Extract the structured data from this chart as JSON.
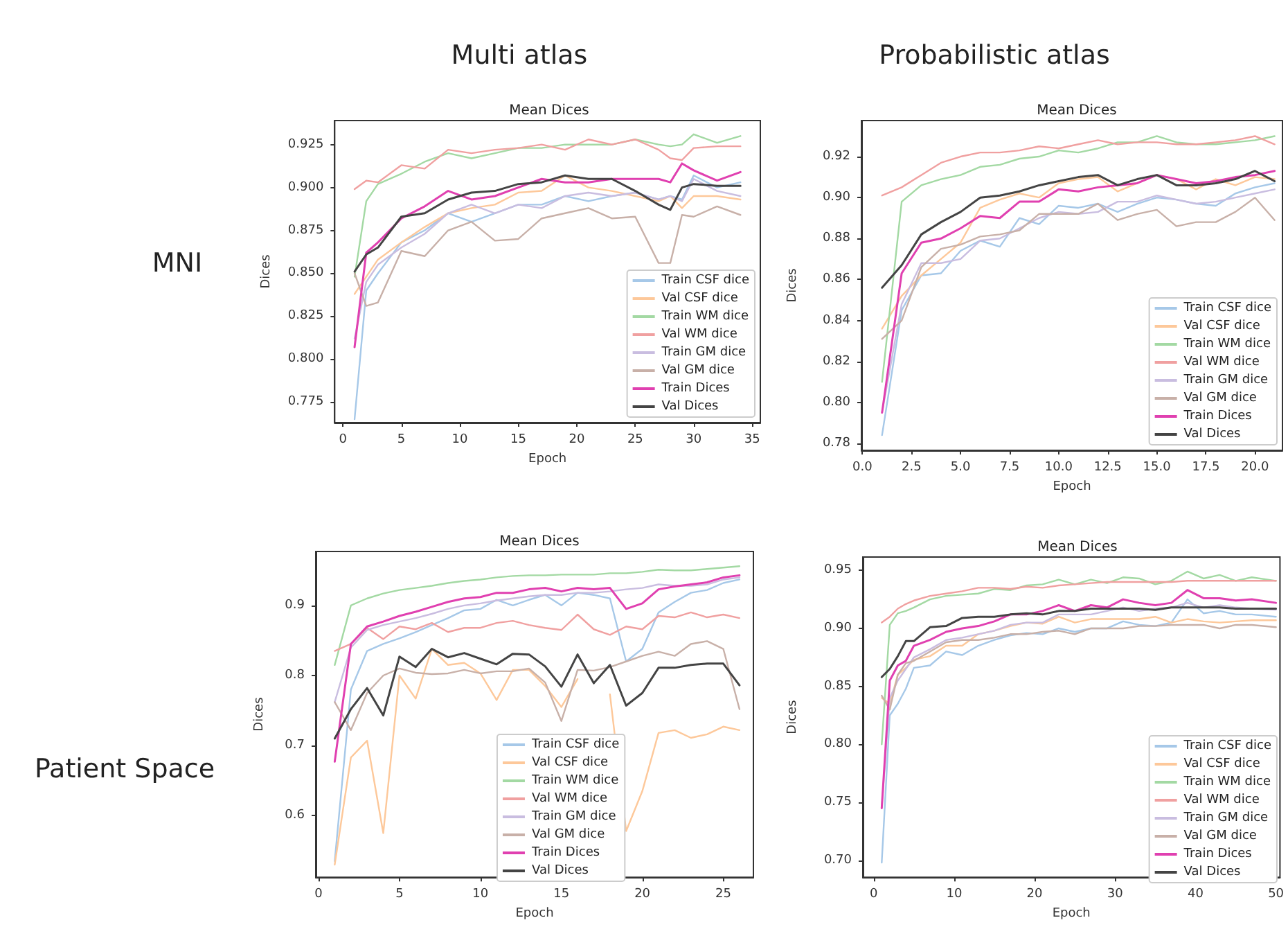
{
  "chart_data": [
    {
      "type": "line",
      "title": "Mean Dices",
      "xlabel": "Epoch",
      "ylabel": "Dices",
      "legend": "bottom right",
      "xlim": [
        -0.7,
        35.7
      ],
      "xticks": [
        0,
        5,
        10,
        15,
        20,
        25,
        30,
        35
      ],
      "ylim": [
        0.763,
        0.939
      ],
      "yticks": [
        {
          "value": 0.775,
          "label": "0.775"
        },
        {
          "value": 0.8,
          "label": "0.800"
        },
        {
          "value": 0.825,
          "label": "0.825"
        },
        {
          "value": 0.85,
          "label": "0.850"
        },
        {
          "value": 0.875,
          "label": "0.875"
        },
        {
          "value": 0.9,
          "label": "0.900"
        },
        {
          "value": 0.925,
          "label": "0.925"
        }
      ],
      "x": [
        1,
        2,
        3,
        5,
        7,
        9,
        11,
        13,
        15,
        17,
        19,
        21,
        23,
        25,
        27,
        28,
        29,
        30,
        32,
        34
      ],
      "series": [
        {
          "name": "Train CSF dice",
          "color": "#a6c8e8",
          "values": [
            0.765,
            0.84,
            0.85,
            0.868,
            0.875,
            0.885,
            0.88,
            0.885,
            0.89,
            0.89,
            0.895,
            0.892,
            0.895,
            0.897,
            0.893,
            0.895,
            0.893,
            0.907,
            0.9,
            0.903
          ]
        },
        {
          "name": "Val CSF dice",
          "color": "#fdc89a",
          "values": [
            0.838,
            0.848,
            0.858,
            0.868,
            0.877,
            0.885,
            0.888,
            0.89,
            0.897,
            0.898,
            0.907,
            0.9,
            0.898,
            0.895,
            0.892,
            0.895,
            0.888,
            0.895,
            0.895,
            0.893
          ]
        },
        {
          "name": "Train WM dice",
          "color": "#a3d9a3",
          "values": [
            0.848,
            0.892,
            0.902,
            0.908,
            0.915,
            0.92,
            0.917,
            0.92,
            0.923,
            0.923,
            0.925,
            0.925,
            0.925,
            0.928,
            0.925,
            0.924,
            0.925,
            0.931,
            0.926,
            0.93
          ]
        },
        {
          "name": "Val WM dice",
          "color": "#f0a0a0",
          "values": [
            0.899,
            0.904,
            0.903,
            0.913,
            0.911,
            0.922,
            0.92,
            0.922,
            0.923,
            0.925,
            0.922,
            0.928,
            0.925,
            0.928,
            0.922,
            0.917,
            0.916,
            0.923,
            0.924,
            0.924
          ]
        },
        {
          "name": "Train GM dice",
          "color": "#c9bde0",
          "values": [
            0.812,
            0.845,
            0.855,
            0.865,
            0.873,
            0.885,
            0.89,
            0.885,
            0.89,
            0.888,
            0.895,
            0.897,
            0.895,
            0.897,
            0.893,
            0.895,
            0.892,
            0.905,
            0.898,
            0.895
          ]
        },
        {
          "name": "Val GM dice",
          "color": "#c8b0a8",
          "values": [
            0.85,
            0.831,
            0.833,
            0.863,
            0.86,
            0.875,
            0.88,
            0.869,
            0.87,
            0.882,
            0.885,
            0.888,
            0.882,
            0.883,
            0.856,
            0.856,
            0.884,
            0.883,
            0.889,
            0.884
          ]
        },
        {
          "name": "Train Dices",
          "color": "#e040b0",
          "values": [
            0.807,
            0.862,
            0.868,
            0.882,
            0.889,
            0.898,
            0.893,
            0.895,
            0.9,
            0.905,
            0.903,
            0.903,
            0.905,
            0.905,
            0.905,
            0.903,
            0.914,
            0.91,
            0.904,
            0.909
          ]
        },
        {
          "name": "Val Dices",
          "color": "#444444",
          "values": [
            0.851,
            0.861,
            0.865,
            0.883,
            0.885,
            0.893,
            0.897,
            0.898,
            0.902,
            0.903,
            0.907,
            0.905,
            0.905,
            0.898,
            0.89,
            0.887,
            0.9,
            0.902,
            0.901,
            0.901
          ]
        }
      ]
    },
    {
      "type": "line",
      "title": "Mean Dices",
      "xlabel": "Epoch",
      "ylabel": "Dices",
      "legend": "bottom right",
      "xlim": [
        -0.05,
        21.4
      ],
      "xticks": [
        {
          "value": 0,
          "label": "0.0"
        },
        {
          "value": 2.5,
          "label": "2.5"
        },
        {
          "value": 5,
          "label": "5.0"
        },
        {
          "value": 7.5,
          "label": "7.5"
        },
        {
          "value": 10,
          "label": "10.0"
        },
        {
          "value": 12.5,
          "label": "12.5"
        },
        {
          "value": 15,
          "label": "15.0"
        },
        {
          "value": 17.5,
          "label": "17.5"
        },
        {
          "value": 20,
          "label": "20.0"
        }
      ],
      "ylim": [
        0.7766,
        0.9376
      ],
      "yticks": [
        0.78,
        {
          "value": 0.8,
          "label": "0.80"
        },
        0.82,
        0.84,
        0.86,
        0.88,
        {
          "value": 0.9,
          "label": "0.90"
        },
        0.92
      ],
      "x": [
        1,
        2,
        3,
        4,
        5,
        6,
        7,
        8,
        9,
        10,
        11,
        12,
        13,
        14,
        15,
        16,
        17,
        18,
        19,
        20,
        21
      ],
      "series": [
        {
          "name": "Train CSF dice",
          "color": "#a6c8e8",
          "values": [
            0.784,
            0.845,
            0.862,
            0.863,
            0.874,
            0.879,
            0.876,
            0.89,
            0.887,
            0.896,
            0.895,
            0.897,
            0.893,
            0.897,
            0.9,
            0.899,
            0.897,
            0.896,
            0.902,
            0.905,
            0.907
          ]
        },
        {
          "name": "Val CSF dice",
          "color": "#fdc89a",
          "values": [
            0.836,
            0.852,
            0.862,
            0.87,
            0.878,
            0.895,
            0.899,
            0.902,
            0.9,
            0.907,
            0.909,
            0.91,
            0.903,
            0.907,
            0.911,
            0.909,
            0.904,
            0.909,
            0.906,
            0.91,
            0.909
          ]
        },
        {
          "name": "Train WM dice",
          "color": "#a3d9a3",
          "values": [
            0.81,
            0.898,
            0.906,
            0.909,
            0.911,
            0.915,
            0.916,
            0.919,
            0.92,
            0.923,
            0.922,
            0.924,
            0.927,
            0.927,
            0.93,
            0.927,
            0.926,
            0.926,
            0.927,
            0.928,
            0.93
          ]
        },
        {
          "name": "Val WM dice",
          "color": "#f0a0a0",
          "values": [
            0.901,
            0.905,
            0.911,
            0.917,
            0.92,
            0.922,
            0.922,
            0.923,
            0.925,
            0.924,
            0.926,
            0.928,
            0.926,
            0.927,
            0.927,
            0.926,
            0.926,
            0.927,
            0.928,
            0.93,
            0.926
          ]
        },
        {
          "name": "Train GM dice",
          "color": "#c9bde0",
          "values": [
            0.795,
            0.848,
            0.868,
            0.868,
            0.87,
            0.879,
            0.88,
            0.885,
            0.89,
            0.893,
            0.892,
            0.893,
            0.898,
            0.898,
            0.901,
            0.899,
            0.897,
            0.898,
            0.9,
            0.902,
            0.904
          ]
        },
        {
          "name": "Val GM dice",
          "color": "#c8b0a8",
          "values": [
            0.831,
            0.84,
            0.866,
            0.875,
            0.877,
            0.881,
            0.882,
            0.884,
            0.892,
            0.892,
            0.892,
            0.897,
            0.889,
            0.892,
            0.894,
            0.886,
            0.888,
            0.888,
            0.893,
            0.9,
            0.889
          ]
        },
        {
          "name": "Train Dices",
          "color": "#e040b0",
          "values": [
            0.795,
            0.863,
            0.878,
            0.88,
            0.885,
            0.891,
            0.89,
            0.898,
            0.898,
            0.904,
            0.903,
            0.905,
            0.906,
            0.907,
            0.911,
            0.909,
            0.907,
            0.908,
            0.91,
            0.911,
            0.913
          ]
        },
        {
          "name": "Val Dices",
          "color": "#444444",
          "values": [
            0.856,
            0.867,
            0.882,
            0.888,
            0.893,
            0.9,
            0.901,
            0.903,
            0.906,
            0.908,
            0.91,
            0.911,
            0.906,
            0.909,
            0.911,
            0.906,
            0.906,
            0.907,
            0.909,
            0.913,
            0.908
          ]
        }
      ]
    },
    {
      "type": "line",
      "title": "Mean Dices",
      "xlabel": "Epoch",
      "ylabel": "Dices",
      "legend": "bottom",
      "xlim": [
        -0.17,
        26.86
      ],
      "xticks": [
        0,
        5,
        10,
        15,
        20,
        25
      ],
      "ylim": [
        0.512,
        0.977
      ],
      "yticks": [
        0.6,
        0.7,
        0.8,
        0.9
      ],
      "x": [
        1,
        2,
        3,
        4,
        5,
        6,
        7,
        8,
        9,
        10,
        11,
        12,
        13,
        14,
        15,
        16,
        17,
        18,
        19,
        20,
        21,
        22,
        23,
        24,
        25,
        26
      ],
      "series": [
        {
          "name": "Train CSF dice",
          "color": "#a6c8e8",
          "values": [
            0.535,
            0.78,
            0.835,
            0.845,
            0.853,
            0.862,
            0.872,
            0.882,
            0.893,
            0.895,
            0.908,
            0.9,
            0.908,
            0.915,
            0.9,
            0.918,
            0.915,
            0.91,
            0.82,
            0.838,
            0.89,
            0.905,
            0.918,
            0.922,
            0.932,
            0.937
          ]
        },
        {
          "name": "Val CSF dice",
          "color": "#fdc89a",
          "values": [
            0.53,
            0.683,
            0.707,
            0.575,
            0.8,
            0.767,
            0.838,
            0.815,
            0.818,
            0.803,
            0.765,
            0.808,
            0.808,
            0.785,
            0.755,
            0.795,
            null,
            0.773,
            0.578,
            0.635,
            0.718,
            0.722,
            0.711,
            0.716,
            0.727,
            0.722
          ]
        },
        {
          "name": "Train WM dice",
          "color": "#a3d9a3",
          "values": [
            0.815,
            0.9,
            0.91,
            0.917,
            0.922,
            0.925,
            0.928,
            0.932,
            0.935,
            0.937,
            0.94,
            0.942,
            0.943,
            0.943,
            0.944,
            0.944,
            0.944,
            0.946,
            0.946,
            0.948,
            0.951,
            0.95,
            0.95,
            0.952,
            0.954,
            0.956
          ]
        },
        {
          "name": "Val WM dice",
          "color": "#f0a0a0",
          "values": [
            0.835,
            0.845,
            0.868,
            0.852,
            0.87,
            0.866,
            0.875,
            0.862,
            0.868,
            0.868,
            0.875,
            0.878,
            0.872,
            0.868,
            0.865,
            0.887,
            0.866,
            0.858,
            0.87,
            0.866,
            0.885,
            0.883,
            0.89,
            0.883,
            0.887,
            0.882
          ]
        },
        {
          "name": "Train GM dice",
          "color": "#c9bde0",
          "values": [
            0.762,
            0.84,
            0.865,
            0.872,
            0.877,
            0.882,
            0.888,
            0.895,
            0.9,
            0.903,
            0.907,
            0.91,
            0.913,
            0.915,
            0.915,
            0.918,
            0.918,
            0.92,
            0.923,
            0.925,
            0.93,
            0.928,
            0.928,
            0.93,
            0.937,
            0.94
          ]
        },
        {
          "name": "Val GM dice",
          "color": "#c8b0a8",
          "values": [
            0.762,
            0.722,
            0.775,
            0.8,
            0.81,
            0.804,
            0.802,
            0.803,
            0.808,
            0.803,
            0.806,
            0.806,
            0.81,
            0.79,
            0.735,
            0.808,
            0.807,
            0.812,
            0.82,
            0.828,
            0.834,
            0.828,
            0.845,
            0.849,
            0.838,
            0.752
          ]
        },
        {
          "name": "Train Dices",
          "color": "#e040b0",
          "values": [
            0.677,
            0.845,
            0.87,
            0.877,
            0.885,
            0.891,
            0.898,
            0.905,
            0.91,
            0.912,
            0.918,
            0.918,
            0.923,
            0.925,
            0.92,
            0.925,
            0.923,
            0.925,
            0.895,
            0.903,
            0.923,
            0.927,
            0.93,
            0.933,
            0.94,
            0.943
          ]
        },
        {
          "name": "Val Dices",
          "color": "#444444",
          "values": [
            0.71,
            0.752,
            0.782,
            0.743,
            0.827,
            0.812,
            0.838,
            0.826,
            0.832,
            0.824,
            0.816,
            0.831,
            0.83,
            0.813,
            0.784,
            0.83,
            0.789,
            0.815,
            0.757,
            0.775,
            0.811,
            0.811,
            0.815,
            0.817,
            0.817,
            0.786
          ]
        }
      ]
    },
    {
      "type": "line",
      "title": "Mean Dices",
      "xlabel": "Epoch",
      "ylabel": "Dices",
      "legend": "bottom right",
      "xlim": [
        -1.35,
        50.5
      ],
      "xticks": [
        0,
        10,
        20,
        30,
        40,
        50
      ],
      "ylim": [
        0.6854,
        0.9615
      ],
      "yticks": [
        {
          "value": 0.7,
          "label": "0.70"
        },
        0.75,
        {
          "value": 0.8,
          "label": "0.80"
        },
        0.85,
        {
          "value": 0.9,
          "label": "0.90"
        },
        0.95
      ],
      "x": [
        1,
        2,
        3,
        4,
        5,
        7,
        9,
        11,
        13,
        15,
        17,
        19,
        21,
        23,
        25,
        27,
        29,
        31,
        33,
        35,
        37,
        39,
        41,
        43,
        45,
        47,
        50
      ],
      "series": [
        {
          "name": "Train CSF dice",
          "color": "#a6c8e8",
          "values": [
            0.698,
            0.825,
            0.835,
            0.848,
            0.866,
            0.868,
            0.88,
            0.877,
            0.885,
            0.89,
            0.894,
            0.896,
            0.895,
            0.9,
            0.897,
            0.9,
            0.9,
            0.906,
            0.903,
            0.902,
            0.905,
            0.925,
            0.913,
            0.915,
            0.912,
            0.912,
            0.91
          ]
        },
        {
          "name": "Val CSF dice",
          "color": "#fdc89a",
          "values": [
            0.84,
            0.835,
            0.86,
            0.866,
            0.873,
            0.876,
            0.885,
            0.885,
            0.895,
            0.898,
            0.902,
            0.905,
            0.904,
            0.91,
            0.905,
            0.908,
            0.908,
            0.908,
            0.908,
            0.91,
            0.905,
            0.908,
            0.906,
            0.905,
            0.906,
            0.907,
            0.907
          ]
        },
        {
          "name": "Train WM dice",
          "color": "#a3d9a3",
          "values": [
            0.8,
            0.903,
            0.913,
            0.915,
            0.918,
            0.925,
            0.928,
            0.929,
            0.93,
            0.934,
            0.933,
            0.937,
            0.938,
            0.942,
            0.938,
            0.942,
            0.939,
            0.944,
            0.943,
            0.938,
            0.941,
            0.949,
            0.943,
            0.946,
            0.941,
            0.944,
            0.941
          ]
        },
        {
          "name": "Val WM dice",
          "color": "#f0a0a0",
          "values": [
            0.905,
            0.91,
            0.917,
            0.921,
            0.924,
            0.928,
            0.93,
            0.932,
            0.935,
            0.935,
            0.934,
            0.936,
            0.935,
            0.937,
            0.938,
            0.939,
            0.94,
            0.94,
            0.94,
            0.94,
            0.94,
            0.941,
            0.941,
            0.941,
            0.941,
            0.941,
            0.941
          ]
        },
        {
          "name": "Train GM dice",
          "color": "#c9bde0",
          "values": [
            0.745,
            0.84,
            0.855,
            0.865,
            0.875,
            0.882,
            0.89,
            0.892,
            0.895,
            0.898,
            0.903,
            0.905,
            0.905,
            0.912,
            0.912,
            0.912,
            0.915,
            0.918,
            0.915,
            0.917,
            0.918,
            0.922,
            0.918,
            0.92,
            0.918,
            0.917,
            0.916
          ]
        },
        {
          "name": "Val GM dice",
          "color": "#c8b0a8",
          "values": [
            0.842,
            0.83,
            0.86,
            0.87,
            0.872,
            0.88,
            0.888,
            0.89,
            0.89,
            0.892,
            0.895,
            0.895,
            0.897,
            0.898,
            0.895,
            0.9,
            0.9,
            0.9,
            0.902,
            0.902,
            0.903,
            0.903,
            0.903,
            0.9,
            0.903,
            0.903,
            0.901
          ]
        },
        {
          "name": "Train Dices",
          "color": "#e040b0",
          "values": [
            0.745,
            0.855,
            0.868,
            0.872,
            0.885,
            0.89,
            0.897,
            0.9,
            0.902,
            0.906,
            0.912,
            0.912,
            0.915,
            0.92,
            0.915,
            0.92,
            0.918,
            0.925,
            0.922,
            0.92,
            0.922,
            0.933,
            0.926,
            0.926,
            0.924,
            0.925,
            0.922
          ]
        },
        {
          "name": "Val Dices",
          "color": "#444444",
          "values": [
            0.858,
            0.865,
            0.876,
            0.889,
            0.889,
            0.901,
            0.902,
            0.909,
            0.91,
            0.91,
            0.912,
            0.913,
            0.912,
            0.915,
            0.915,
            0.917,
            0.917,
            0.917,
            0.917,
            0.916,
            0.918,
            0.918,
            0.918,
            0.918,
            0.917,
            0.917,
            0.917
          ]
        }
      ]
    },
    {
      "type": "other",
      "annotations": [
        "Multi atlas",
        "Probabilistic atlas",
        "MNI",
        "Patient Space"
      ]
    }
  ]
}
